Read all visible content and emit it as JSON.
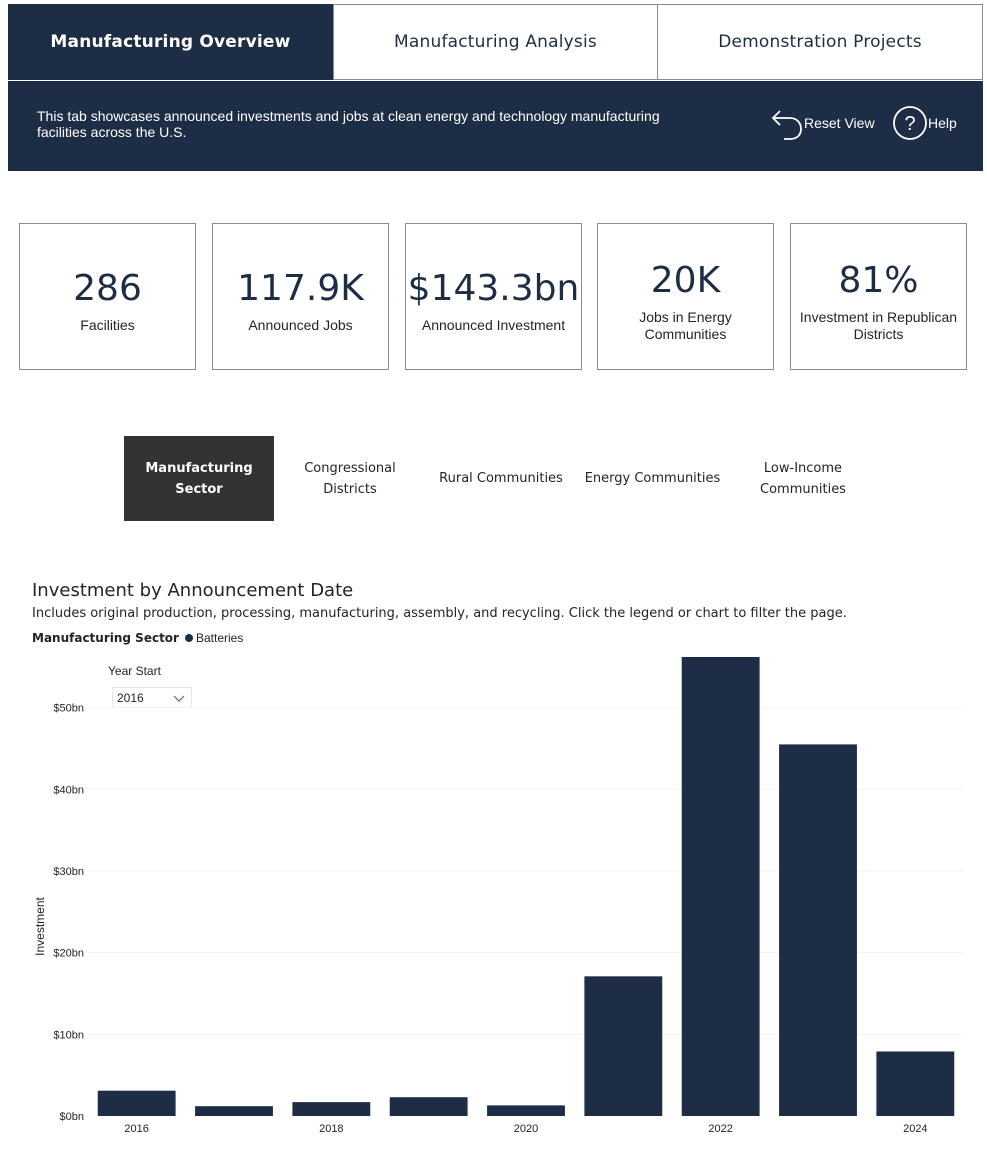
{
  "tabs": [
    {
      "label": "Manufacturing Overview",
      "active": true
    },
    {
      "label": "Manufacturing Analysis",
      "active": false
    },
    {
      "label": "Demonstration Projects",
      "active": false
    }
  ],
  "banner": {
    "text": "This tab showcases announced investments and jobs at clean energy and technology manufacturing facilities across the U.S.",
    "reset_label": "Reset View",
    "help_label": "Help"
  },
  "kpis": [
    {
      "value": "286",
      "label": "Facilities"
    },
    {
      "value": "117.9K",
      "label": "Announced Jobs"
    },
    {
      "value": "$143.3bn",
      "label": "Announced Investment"
    },
    {
      "value": "20K",
      "label": "Jobs in Energy Communities"
    },
    {
      "value": "81%",
      "label": "Investment in Republican Districts"
    }
  ],
  "categories": [
    {
      "label": "Manufacturing Sector",
      "active": true
    },
    {
      "label": "Congressional Districts",
      "active": false
    },
    {
      "label": "Rural Communities",
      "active": false
    },
    {
      "label": "Energy Communities",
      "active": false
    },
    {
      "label": "Low-Income Communities",
      "active": false
    }
  ],
  "year_filter": {
    "label": "Year Start",
    "value": "2016"
  },
  "colors": {
    "navy": "#1e2d46",
    "dark": "#333333"
  },
  "chart_data": {
    "type": "bar",
    "title": "Investment by Announcement Date",
    "subtitle": "Includes original production, processing, manufacturing, assembly, and recycling. Click the legend or chart to filter the page.",
    "legend_title": "Manufacturing Sector",
    "series": [
      {
        "name": "Batteries",
        "values": [
          3.1,
          1.2,
          1.7,
          2.3,
          1.3,
          17.1,
          56.2,
          45.5,
          7.9
        ]
      }
    ],
    "categories": [
      2016,
      2017,
      2018,
      2019,
      2020,
      2021,
      2022,
      2023,
      2024
    ],
    "x_tick_labels": [
      "2016",
      "2018",
      "2020",
      "2022",
      "2024"
    ],
    "ylabel": "Investment",
    "xlabel": "",
    "y_ticks": [
      "$0bn",
      "$10bn",
      "$20bn",
      "$30bn",
      "$40bn",
      "$50bn"
    ],
    "ylim": [
      0,
      56.2
    ]
  }
}
